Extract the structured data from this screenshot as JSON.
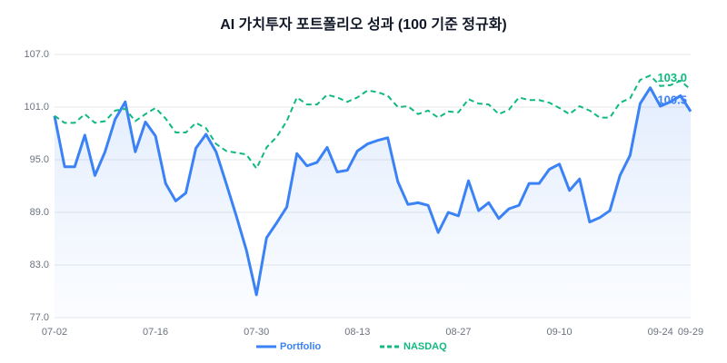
{
  "chart_data": {
    "type": "line",
    "title": "AI 가치투자 포트폴리오 성과 (100 기준 정규화)",
    "categories": [
      "07-02",
      null,
      null,
      null,
      null,
      null,
      null,
      null,
      null,
      null,
      "07-16",
      null,
      null,
      null,
      null,
      null,
      null,
      null,
      null,
      null,
      "07-30",
      null,
      null,
      null,
      null,
      null,
      null,
      null,
      null,
      null,
      "08-13",
      null,
      null,
      null,
      null,
      null,
      null,
      null,
      null,
      null,
      "08-27",
      null,
      null,
      null,
      null,
      null,
      null,
      null,
      null,
      null,
      "09-10",
      null,
      null,
      null,
      null,
      null,
      null,
      null,
      null,
      null,
      "09-24",
      null,
      null,
      "09-29"
    ],
    "series": [
      {
        "name": "Portfolio",
        "color": "#3b82f6",
        "dashed": false,
        "area": true,
        "values": [
          100.0,
          94.2,
          94.2,
          97.8,
          93.2,
          95.9,
          99.6,
          101.6,
          95.9,
          99.3,
          97.7,
          92.3,
          90.3,
          91.2,
          96.3,
          97.9,
          95.9,
          92.3,
          88.6,
          84.7,
          79.6,
          86.1,
          87.8,
          89.6,
          95.7,
          94.3,
          94.7,
          96.4,
          93.6,
          93.8,
          96.0,
          96.8,
          97.2,
          97.5,
          92.5,
          89.9,
          90.1,
          89.8,
          86.7,
          89.0,
          88.6,
          92.6,
          89.2,
          90.1,
          88.3,
          89.4,
          89.8,
          92.3,
          92.3,
          93.9,
          94.5,
          91.5,
          92.8,
          87.9,
          88.4,
          89.2,
          93.2,
          95.5,
          101.4,
          103.2,
          101.1,
          101.6,
          102.3,
          100.5
        ],
        "value_labels": [
          null,
          null,
          null,
          null,
          null,
          null,
          null,
          null,
          null,
          null,
          null,
          null,
          null,
          null,
          null,
          null,
          null,
          null,
          null,
          null,
          null,
          null,
          null,
          null,
          null,
          null,
          null,
          null,
          null,
          null,
          null,
          null,
          null,
          null,
          null,
          null,
          null,
          null,
          null,
          null,
          null,
          null,
          null,
          null,
          null,
          null,
          null,
          null,
          null,
          null,
          null,
          null,
          null,
          null,
          null,
          null,
          null,
          null,
          null,
          null,
          null,
          null,
          null,
          "100.5"
        ]
      },
      {
        "name": "NASDAQ",
        "color": "#10b981",
        "dashed": true,
        "area": false,
        "values": [
          100.0,
          99.2,
          99.2,
          100.2,
          99.2,
          99.4,
          100.6,
          100.8,
          99.4,
          100.2,
          100.9,
          99.7,
          98.1,
          98.1,
          99.2,
          98.6,
          96.8,
          96.0,
          95.8,
          95.6,
          94.0,
          96.4,
          97.6,
          99.4,
          102.1,
          101.3,
          101.3,
          102.4,
          102.1,
          101.6,
          102.1,
          102.9,
          102.7,
          102.3,
          101.0,
          101.1,
          100.2,
          100.6,
          99.8,
          100.5,
          100.4,
          101.9,
          101.4,
          101.3,
          100.2,
          100.7,
          102.1,
          101.8,
          101.8,
          101.5,
          100.9,
          100.2,
          101.1,
          100.6,
          99.8,
          99.8,
          101.5,
          102.0,
          104.1,
          104.6,
          103.4,
          103.5,
          104.0,
          103.0
        ],
        "value_labels": [
          null,
          null,
          null,
          null,
          null,
          null,
          null,
          null,
          null,
          null,
          null,
          null,
          null,
          null,
          null,
          null,
          null,
          null,
          null,
          null,
          null,
          null,
          null,
          null,
          null,
          null,
          null,
          null,
          null,
          null,
          null,
          null,
          null,
          null,
          null,
          null,
          null,
          null,
          null,
          null,
          null,
          null,
          null,
          null,
          null,
          null,
          null,
          null,
          null,
          null,
          null,
          null,
          null,
          null,
          null,
          null,
          null,
          null,
          null,
          null,
          null,
          null,
          null,
          "103.0"
        ]
      }
    ],
    "ylim": [
      77,
      107
    ],
    "yticks": [
      {
        "value": 77,
        "label": "77.0"
      },
      {
        "value": 83,
        "label": "83.0"
      },
      {
        "value": 89,
        "label": "89.0"
      },
      {
        "value": 95,
        "label": "95.0"
      },
      {
        "value": 101,
        "label": "101.0"
      },
      {
        "value": 107,
        "label": "107.0"
      }
    ],
    "grid": true,
    "legend": "bottom"
  }
}
